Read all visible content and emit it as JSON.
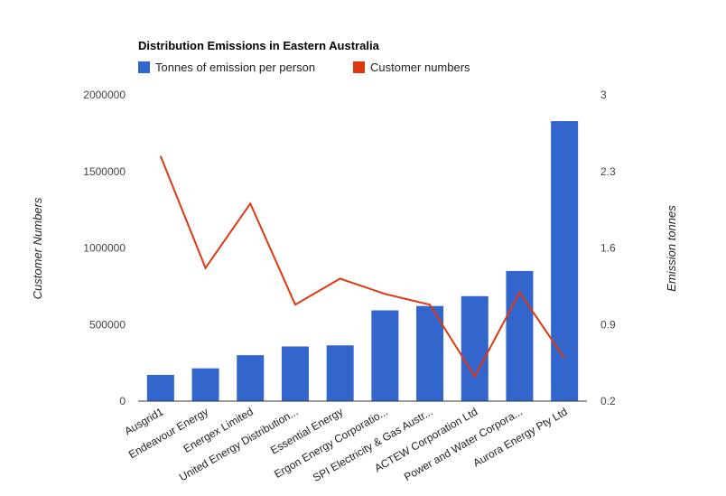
{
  "chart_data": {
    "type": "bar",
    "title": "Distribution Emissions in Eastern Australia",
    "legend_position": "top-left",
    "grid": false,
    "categories": [
      "Ausgrid1",
      "Endeavour Energy",
      "Energex Limited",
      "United Energy Distribution...",
      "Essential Energy",
      "Ergon Energy Corporatio...",
      "SPI Electricity & Gas Austr...",
      "ACTEW Corporation Ltd",
      "Power and Water Corpora...",
      "Aurora Energy Pty Ltd"
    ],
    "left_axis": {
      "label": "Customer Numbers",
      "min": 0,
      "max": 2000000,
      "ticks": [
        "0",
        "500000",
        "1000000",
        "1500000",
        "2000000"
      ]
    },
    "right_axis": {
      "label": "Emission tonnes",
      "min": 0.2,
      "max": 3,
      "ticks": [
        "0.2",
        "0.9",
        "1.6",
        "2.3",
        "3"
      ]
    },
    "series": [
      {
        "name": "Tonnes of emission per person",
        "kind": "bar",
        "axis": "right",
        "color": "#3366cc",
        "values": [
          0.44,
          0.5,
          0.62,
          0.7,
          0.71,
          1.03,
          1.07,
          1.16,
          1.39,
          2.76
        ]
      },
      {
        "name": "Customer numbers",
        "kind": "line",
        "axis": "left",
        "color": "#dc3912",
        "values": [
          1600000,
          870000,
          1290000,
          630000,
          800000,
          700000,
          630000,
          160000,
          710000,
          280000
        ]
      }
    ]
  }
}
